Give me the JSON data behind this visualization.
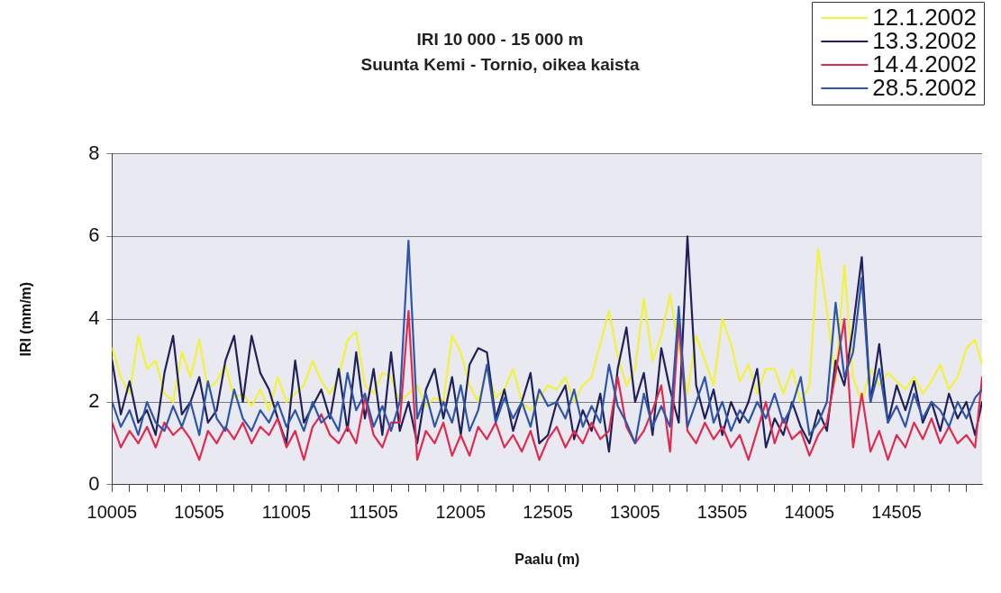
{
  "chart_data": {
    "type": "line",
    "title": "IRI 10 000 - 15 000 m",
    "subtitle": "Suunta Kemi - Tornio, oikea kaista",
    "xlabel": "Paalu (m)",
    "ylabel": "IRI (mm/m)",
    "x": [
      10005,
      10055,
      10105,
      10155,
      10205,
      10255,
      10305,
      10355,
      10405,
      10455,
      10505,
      10555,
      10605,
      10655,
      10705,
      10755,
      10805,
      10855,
      10905,
      10955,
      11005,
      11055,
      11105,
      11155,
      11205,
      11255,
      11305,
      11355,
      11405,
      11455,
      11505,
      11555,
      11605,
      11655,
      11705,
      11755,
      11805,
      11855,
      11905,
      11955,
      12005,
      12055,
      12105,
      12155,
      12205,
      12255,
      12305,
      12355,
      12405,
      12455,
      12505,
      12555,
      12605,
      12655,
      12705,
      12755,
      12805,
      12855,
      12905,
      12955,
      13005,
      13055,
      13105,
      13155,
      13205,
      13255,
      13305,
      13355,
      13405,
      13455,
      13505,
      13555,
      13605,
      13655,
      13705,
      13755,
      13805,
      13855,
      13905,
      13955,
      14005,
      14055,
      14105,
      14155,
      14205,
      14255,
      14305,
      14355,
      14405,
      14455,
      14505,
      14555,
      14605,
      14655,
      14705,
      14755,
      14805,
      14855,
      14905,
      14955,
      14995
    ],
    "series": [
      {
        "name": "12.1.2002",
        "color": "#f2f23c",
        "values": [
          3.3,
          2.6,
          2.2,
          3.6,
          2.8,
          3.0,
          2.2,
          2.0,
          3.2,
          2.6,
          3.5,
          2.3,
          2.5,
          2.9,
          2.1,
          2.2,
          1.9,
          2.3,
          1.8,
          2.6,
          2.0,
          2.2,
          2.4,
          3.0,
          2.5,
          2.2,
          2.6,
          3.5,
          3.7,
          2.4,
          2.2,
          2.7,
          2.6,
          2.0,
          2.2,
          2.4,
          1.9,
          2.1,
          2.0,
          3.6,
          3.2,
          2.4,
          2.0,
          2.8,
          2.1,
          2.3,
          2.8,
          2.0,
          1.8,
          2.1,
          2.4,
          2.3,
          2.6,
          2.0,
          2.4,
          2.6,
          3.4,
          4.2,
          3.1,
          2.4,
          2.8,
          4.5,
          3.0,
          3.6,
          4.6,
          3.3,
          2.2,
          3.6,
          3.0,
          2.4,
          4.0,
          3.4,
          2.5,
          2.9,
          2.2,
          2.8,
          2.8,
          2.2,
          2.8,
          2.0,
          2.4,
          5.7,
          4.2,
          2.5,
          5.3,
          2.6,
          2.0,
          2.8,
          2.4,
          2.7,
          2.5,
          2.3,
          2.6,
          2.2,
          2.5,
          2.9,
          2.3,
          2.6,
          3.3,
          3.5,
          2.9
        ]
      },
      {
        "name": "13.3.2002",
        "color": "#20205a",
        "values": [
          3.0,
          1.7,
          2.5,
          1.5,
          1.8,
          1.2,
          2.7,
          3.6,
          1.7,
          2.0,
          2.6,
          1.5,
          1.8,
          3.0,
          3.6,
          2.0,
          3.6,
          2.7,
          2.3,
          1.6,
          1.0,
          3.0,
          1.5,
          1.9,
          2.3,
          1.6,
          2.8,
          1.3,
          3.2,
          1.6,
          2.8,
          1.2,
          3.2,
          1.3,
          2.0,
          1.0,
          2.3,
          2.8,
          1.6,
          2.6,
          1.2,
          2.9,
          3.3,
          3.2,
          1.6,
          2.3,
          1.3,
          2.0,
          2.7,
          1.0,
          1.2,
          2.0,
          2.4,
          1.1,
          1.8,
          1.3,
          2.2,
          0.8,
          2.8,
          3.8,
          2.0,
          2.7,
          1.2,
          3.3,
          2.3,
          1.5,
          6.0,
          2.4,
          1.6,
          2.3,
          1.2,
          2.0,
          1.5,
          2.0,
          2.8,
          0.9,
          1.6,
          1.2,
          2.0,
          1.4,
          1.0,
          1.8,
          1.3,
          3.0,
          2.4,
          3.8,
          5.5,
          2.0,
          3.4,
          1.5,
          2.4,
          1.8,
          2.5,
          1.5,
          2.0,
          1.3,
          2.2,
          1.6,
          2.0,
          1.2,
          2.0
        ]
      },
      {
        "name": "14.4.2002",
        "color": "#e02a50",
        "values": [
          1.5,
          0.9,
          1.3,
          1.0,
          1.4,
          0.9,
          1.5,
          1.2,
          1.4,
          1.1,
          0.6,
          1.3,
          1.0,
          1.4,
          1.1,
          1.5,
          1.0,
          1.4,
          1.2,
          1.6,
          0.9,
          1.3,
          0.6,
          1.4,
          1.7,
          1.2,
          1.0,
          1.4,
          1.0,
          2.1,
          1.2,
          0.9,
          1.5,
          1.5,
          4.2,
          0.6,
          1.3,
          1.0,
          1.5,
          0.7,
          1.2,
          0.7,
          1.4,
          1.1,
          1.5,
          0.9,
          1.2,
          0.8,
          1.3,
          0.6,
          1.1,
          1.4,
          0.9,
          1.3,
          1.0,
          1.5,
          1.1,
          1.3,
          2.6,
          1.4,
          1.0,
          1.3,
          1.8,
          2.4,
          0.8,
          3.9,
          1.3,
          1.0,
          1.5,
          1.1,
          1.4,
          0.9,
          1.2,
          0.6,
          1.3,
          2.0,
          1.0,
          1.6,
          1.1,
          1.3,
          0.7,
          1.2,
          1.5,
          2.7,
          4.0,
          0.9,
          2.2,
          0.8,
          1.3,
          0.6,
          1.2,
          0.9,
          1.5,
          1.1,
          1.6,
          1.0,
          1.4,
          1.0,
          1.2,
          0.9,
          2.6
        ]
      },
      {
        "name": "28.5.2002",
        "color": "#2e55a8",
        "values": [
          2.0,
          1.4,
          1.8,
          1.2,
          2.0,
          1.5,
          1.3,
          1.9,
          1.4,
          2.0,
          1.2,
          2.5,
          1.6,
          1.3,
          2.3,
          1.6,
          1.3,
          1.8,
          1.5,
          2.0,
          1.4,
          1.8,
          1.3,
          2.0,
          1.5,
          1.7,
          1.3,
          2.7,
          1.8,
          2.2,
          1.4,
          1.9,
          1.3,
          2.0,
          5.9,
          1.6,
          2.2,
          1.4,
          2.0,
          1.5,
          2.4,
          1.3,
          1.8,
          2.9,
          1.5,
          2.1,
          1.6,
          2.0,
          1.4,
          2.3,
          1.9,
          2.0,
          1.6,
          2.3,
          1.4,
          1.9,
          1.5,
          2.9,
          1.9,
          1.5,
          1.0,
          2.2,
          1.4,
          1.9,
          1.4,
          4.3,
          1.4,
          2.0,
          2.6,
          1.5,
          2.0,
          1.3,
          1.8,
          1.5,
          2.0,
          1.6,
          2.2,
          1.5,
          1.9,
          2.6,
          1.2,
          1.5,
          2.0,
          4.4,
          2.6,
          3.2,
          5.0,
          2.0,
          2.8,
          1.5,
          1.9,
          1.4,
          2.2,
          1.6,
          2.0,
          1.8,
          1.4,
          2.0,
          1.6,
          2.1,
          2.3
        ]
      }
    ],
    "xlim": [
      10005,
      14995
    ],
    "xticks": [
      10005,
      {
        "value": 10105,
        "label": null
      },
      {
        "value": 10205,
        "label": null
      },
      {
        "value": 10305,
        "label": null
      },
      {
        "value": 10405,
        "label": null
      },
      10505,
      {
        "value": 10605,
        "label": null
      },
      {
        "value": 10705,
        "label": null
      },
      {
        "value": 10805,
        "label": null
      },
      {
        "value": 10905,
        "label": null
      },
      11005,
      {
        "value": 11105,
        "label": null
      },
      {
        "value": 11205,
        "label": null
      },
      {
        "value": 11305,
        "label": null
      },
      {
        "value": 11405,
        "label": null
      },
      11505,
      {
        "value": 11605,
        "label": null
      },
      {
        "value": 11705,
        "label": null
      },
      {
        "value": 11805,
        "label": null
      },
      {
        "value": 11905,
        "label": null
      },
      12005,
      {
        "value": 12105,
        "label": null
      },
      {
        "value": 12205,
        "label": null
      },
      {
        "value": 12305,
        "label": null
      },
      {
        "value": 12405,
        "label": null
      },
      12505,
      {
        "value": 12605,
        "label": null
      },
      {
        "value": 12705,
        "label": null
      },
      {
        "value": 12805,
        "label": null
      },
      {
        "value": 12905,
        "label": null
      },
      13005,
      {
        "value": 13105,
        "label": null
      },
      {
        "value": 13205,
        "label": null
      },
      {
        "value": 13305,
        "label": null
      },
      {
        "value": 13405,
        "label": null
      },
      13505,
      {
        "value": 13605,
        "label": null
      },
      {
        "value": 13705,
        "label": null
      },
      {
        "value": 13805,
        "label": null
      },
      {
        "value": 13905,
        "label": null
      },
      14005,
      {
        "value": 14105,
        "label": null
      },
      {
        "value": 14205,
        "label": null
      },
      {
        "value": 14305,
        "label": null
      },
      {
        "value": 14405,
        "label": null
      },
      14505,
      {
        "value": 14605,
        "label": null
      },
      {
        "value": 14705,
        "label": null
      },
      {
        "value": 14805,
        "label": null
      },
      {
        "value": 14905,
        "label": null
      }
    ],
    "ylim": [
      0,
      8
    ],
    "yticks": [
      0,
      2,
      4,
      6,
      8
    ],
    "grid": "y",
    "legend": "top right"
  }
}
